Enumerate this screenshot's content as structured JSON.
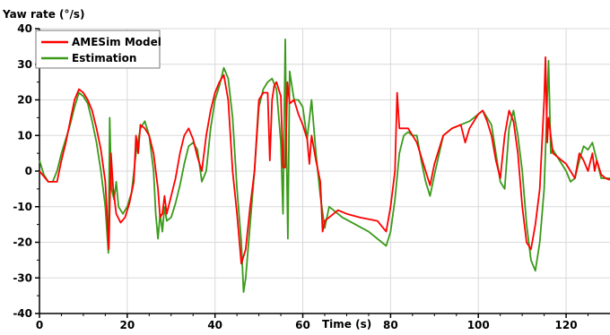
{
  "chart_data": {
    "type": "line",
    "title": "",
    "xlabel": "Time (s)",
    "ylabel": "Yaw rate (°/s)",
    "xlim": [
      0,
      130
    ],
    "ylim": [
      -40,
      40
    ],
    "x_ticks": [
      0,
      20,
      40,
      60,
      80,
      100,
      120
    ],
    "y_ticks": [
      -40,
      -30,
      -20,
      -10,
      0,
      10,
      20,
      30,
      40
    ],
    "grid": true,
    "legend_position": "top-left",
    "series": [
      {
        "name": "AMESim Model",
        "color": "#ff0000",
        "points": [
          [
            0,
            0
          ],
          [
            2,
            -3
          ],
          [
            4,
            -3
          ],
          [
            5,
            3
          ],
          [
            6,
            8
          ],
          [
            7,
            14
          ],
          [
            8,
            20
          ],
          [
            9,
            23
          ],
          [
            10,
            22
          ],
          [
            11,
            20
          ],
          [
            12,
            17
          ],
          [
            13,
            12
          ],
          [
            14,
            6
          ],
          [
            15,
            -3
          ],
          [
            15.8,
            -22
          ],
          [
            16.3,
            5
          ],
          [
            16.8,
            -5
          ],
          [
            17.5,
            -12
          ],
          [
            18.5,
            -14.5
          ],
          [
            19.5,
            -13
          ],
          [
            20.5,
            -9
          ],
          [
            21.5,
            -3
          ],
          [
            22,
            10
          ],
          [
            22.5,
            5
          ],
          [
            23,
            13
          ],
          [
            24,
            12
          ],
          [
            25,
            10
          ],
          [
            26,
            5
          ],
          [
            27,
            -5
          ],
          [
            27.5,
            -13
          ],
          [
            28,
            -12
          ],
          [
            28.5,
            -7
          ],
          [
            29,
            -12
          ],
          [
            30,
            -7
          ],
          [
            31,
            -2
          ],
          [
            32,
            5
          ],
          [
            33,
            10
          ],
          [
            34,
            12
          ],
          [
            35,
            9
          ],
          [
            36,
            4
          ],
          [
            37,
            0
          ],
          [
            38,
            10
          ],
          [
            39,
            17
          ],
          [
            40,
            22
          ],
          [
            41,
            25
          ],
          [
            42,
            27
          ],
          [
            43,
            20
          ],
          [
            44,
            0
          ],
          [
            45,
            -12
          ],
          [
            46,
            -26
          ],
          [
            47,
            -22
          ],
          [
            48,
            -10
          ],
          [
            49,
            0
          ],
          [
            50,
            20
          ],
          [
            51,
            22
          ],
          [
            52,
            22
          ],
          [
            52.5,
            3
          ],
          [
            53,
            20
          ],
          [
            53.5,
            24
          ],
          [
            54,
            25
          ],
          [
            55,
            21
          ],
          [
            55.5,
            1
          ],
          [
            56,
            1
          ],
          [
            56.5,
            25
          ],
          [
            57,
            19
          ],
          [
            58,
            20
          ],
          [
            59,
            16
          ],
          [
            60,
            13
          ],
          [
            61,
            9
          ],
          [
            61.5,
            2
          ],
          [
            62,
            10
          ],
          [
            63,
            3
          ],
          [
            64,
            -3
          ],
          [
            64.5,
            -17
          ],
          [
            65,
            -14
          ],
          [
            66,
            -13
          ],
          [
            67,
            -12
          ],
          [
            68,
            -11
          ],
          [
            70,
            -12
          ],
          [
            73,
            -13
          ],
          [
            77,
            -14
          ],
          [
            79,
            -17
          ],
          [
            80,
            -10
          ],
          [
            81,
            0
          ],
          [
            81.5,
            22
          ],
          [
            82,
            12
          ],
          [
            84,
            12
          ],
          [
            86,
            8
          ],
          [
            88,
            0
          ],
          [
            89,
            -4
          ],
          [
            90,
            2
          ],
          [
            92,
            10
          ],
          [
            94,
            12
          ],
          [
            96,
            13
          ],
          [
            97,
            8
          ],
          [
            98,
            12
          ],
          [
            100,
            16
          ],
          [
            101,
            17
          ],
          [
            102,
            14
          ],
          [
            103,
            10
          ],
          [
            104,
            3
          ],
          [
            105,
            -2
          ],
          [
            106,
            10
          ],
          [
            107,
            17
          ],
          [
            108,
            14
          ],
          [
            109,
            5
          ],
          [
            110,
            -10
          ],
          [
            111,
            -20
          ],
          [
            112,
            -22
          ],
          [
            113,
            -15
          ],
          [
            114,
            -5
          ],
          [
            115,
            20
          ],
          [
            115.3,
            32
          ],
          [
            115.7,
            8
          ],
          [
            116,
            15
          ],
          [
            117,
            5
          ],
          [
            118,
            4
          ],
          [
            119,
            3
          ],
          [
            120,
            2
          ],
          [
            121,
            0
          ],
          [
            122,
            -2
          ],
          [
            123,
            5
          ],
          [
            124,
            3
          ],
          [
            125,
            0
          ],
          [
            126,
            5
          ],
          [
            126.5,
            0
          ],
          [
            127,
            3
          ],
          [
            128,
            -1
          ],
          [
            129,
            -2
          ],
          [
            130,
            -2.5
          ]
        ]
      },
      {
        "name": "Estimation",
        "color": "#3a9a1a",
        "points": [
          [
            0,
            3
          ],
          [
            1,
            -1
          ],
          [
            2,
            -3
          ],
          [
            3,
            -3
          ],
          [
            4,
            0
          ],
          [
            5,
            5
          ],
          [
            6,
            9
          ],
          [
            7,
            13
          ],
          [
            8,
            18
          ],
          [
            9,
            22
          ],
          [
            10,
            21
          ],
          [
            11,
            19
          ],
          [
            12,
            14
          ],
          [
            13,
            8
          ],
          [
            14,
            0
          ],
          [
            15,
            -10
          ],
          [
            15.7,
            -23
          ],
          [
            16,
            15
          ],
          [
            16.4,
            -5
          ],
          [
            17,
            -8
          ],
          [
            17.5,
            -3
          ],
          [
            18,
            -10
          ],
          [
            19,
            -12
          ],
          [
            20,
            -10
          ],
          [
            21,
            -6
          ],
          [
            22,
            5
          ],
          [
            23,
            12
          ],
          [
            24,
            14
          ],
          [
            25,
            10
          ],
          [
            26,
            0
          ],
          [
            26.5,
            -12
          ],
          [
            27,
            -19
          ],
          [
            27.5,
            -12
          ],
          [
            28,
            -17
          ],
          [
            28.5,
            -10
          ],
          [
            29,
            -14
          ],
          [
            30,
            -13
          ],
          [
            31,
            -9
          ],
          [
            32,
            -4
          ],
          [
            33,
            2
          ],
          [
            34,
            7
          ],
          [
            35,
            8
          ],
          [
            36,
            6
          ],
          [
            37,
            -3
          ],
          [
            38,
            0
          ],
          [
            39,
            12
          ],
          [
            40,
            20
          ],
          [
            41,
            24
          ],
          [
            42,
            29
          ],
          [
            43,
            26
          ],
          [
            44,
            15
          ],
          [
            45,
            -5
          ],
          [
            46,
            -20
          ],
          [
            46.5,
            -34
          ],
          [
            47,
            -30
          ],
          [
            48,
            -15
          ],
          [
            49,
            0
          ],
          [
            50,
            18
          ],
          [
            51,
            23
          ],
          [
            52,
            25
          ],
          [
            53,
            26
          ],
          [
            54,
            23
          ],
          [
            55,
            8
          ],
          [
            55.5,
            -12
          ],
          [
            56,
            37
          ],
          [
            56.3,
            5
          ],
          [
            56.6,
            -19
          ],
          [
            57,
            28
          ],
          [
            58,
            20
          ],
          [
            59,
            20
          ],
          [
            60,
            18
          ],
          [
            61,
            9
          ],
          [
            62,
            20
          ],
          [
            63,
            5
          ],
          [
            64,
            -7
          ],
          [
            65,
            -16
          ],
          [
            66,
            -10
          ],
          [
            67,
            -11
          ],
          [
            68,
            -12
          ],
          [
            69,
            -13
          ],
          [
            72,
            -15
          ],
          [
            75,
            -17
          ],
          [
            78,
            -20
          ],
          [
            79,
            -21
          ],
          [
            80,
            -17
          ],
          [
            81,
            -8
          ],
          [
            82,
            5
          ],
          [
            83,
            10
          ],
          [
            84,
            11
          ],
          [
            85,
            10
          ],
          [
            86,
            10
          ],
          [
            87,
            3
          ],
          [
            88,
            -3
          ],
          [
            89,
            -7
          ],
          [
            90,
            -1
          ],
          [
            92,
            10
          ],
          [
            94,
            12
          ],
          [
            96,
            13
          ],
          [
            98,
            14
          ],
          [
            99,
            15
          ],
          [
            100,
            16
          ],
          [
            101,
            17
          ],
          [
            102,
            15
          ],
          [
            103,
            13
          ],
          [
            104,
            5
          ],
          [
            105,
            -3
          ],
          [
            106,
            -5
          ],
          [
            107,
            12
          ],
          [
            108,
            17
          ],
          [
            109,
            10
          ],
          [
            110,
            0
          ],
          [
            111,
            -15
          ],
          [
            112,
            -25
          ],
          [
            113,
            -28
          ],
          [
            114,
            -20
          ],
          [
            115,
            -5
          ],
          [
            116,
            31
          ],
          [
            116.5,
            5
          ],
          [
            117,
            6
          ],
          [
            118,
            4
          ],
          [
            120,
            0
          ],
          [
            121,
            -3
          ],
          [
            122,
            -2
          ],
          [
            123,
            3
          ],
          [
            124,
            7
          ],
          [
            125,
            6
          ],
          [
            126,
            8
          ],
          [
            127,
            3
          ],
          [
            128,
            -2
          ],
          [
            129,
            -2
          ],
          [
            130,
            -2
          ]
        ]
      }
    ]
  }
}
